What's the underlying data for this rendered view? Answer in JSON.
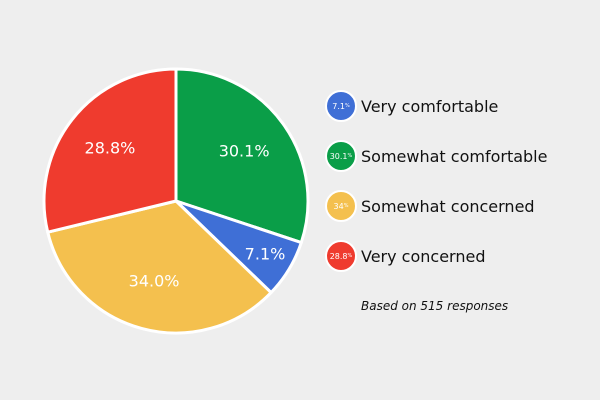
{
  "chart_data": {
    "type": "pie",
    "slices": [
      {
        "name": "Very comfortable",
        "value": 7.1,
        "label": "7.1%",
        "legend_value": "7.1",
        "legend_unit": "%",
        "color": "#3f6fd6"
      },
      {
        "name": "Somewhat comfortable",
        "value": 30.1,
        "label": "30.1%",
        "legend_value": "30.1",
        "legend_unit": "%",
        "color": "#0a9e48"
      },
      {
        "name": "Somewhat concerned",
        "value": 34.0,
        "label": "34.0%",
        "legend_value": "34",
        "legend_unit": "%",
        "color": "#f4c04e"
      },
      {
        "name": "Very concerned",
        "value": 28.8,
        "label": "28.8%",
        "legend_value": "28.8",
        "legend_unit": "%",
        "color": "#ef3b2e"
      }
    ],
    "legend_placement": "right",
    "footnote": "Based on 515 responses"
  }
}
